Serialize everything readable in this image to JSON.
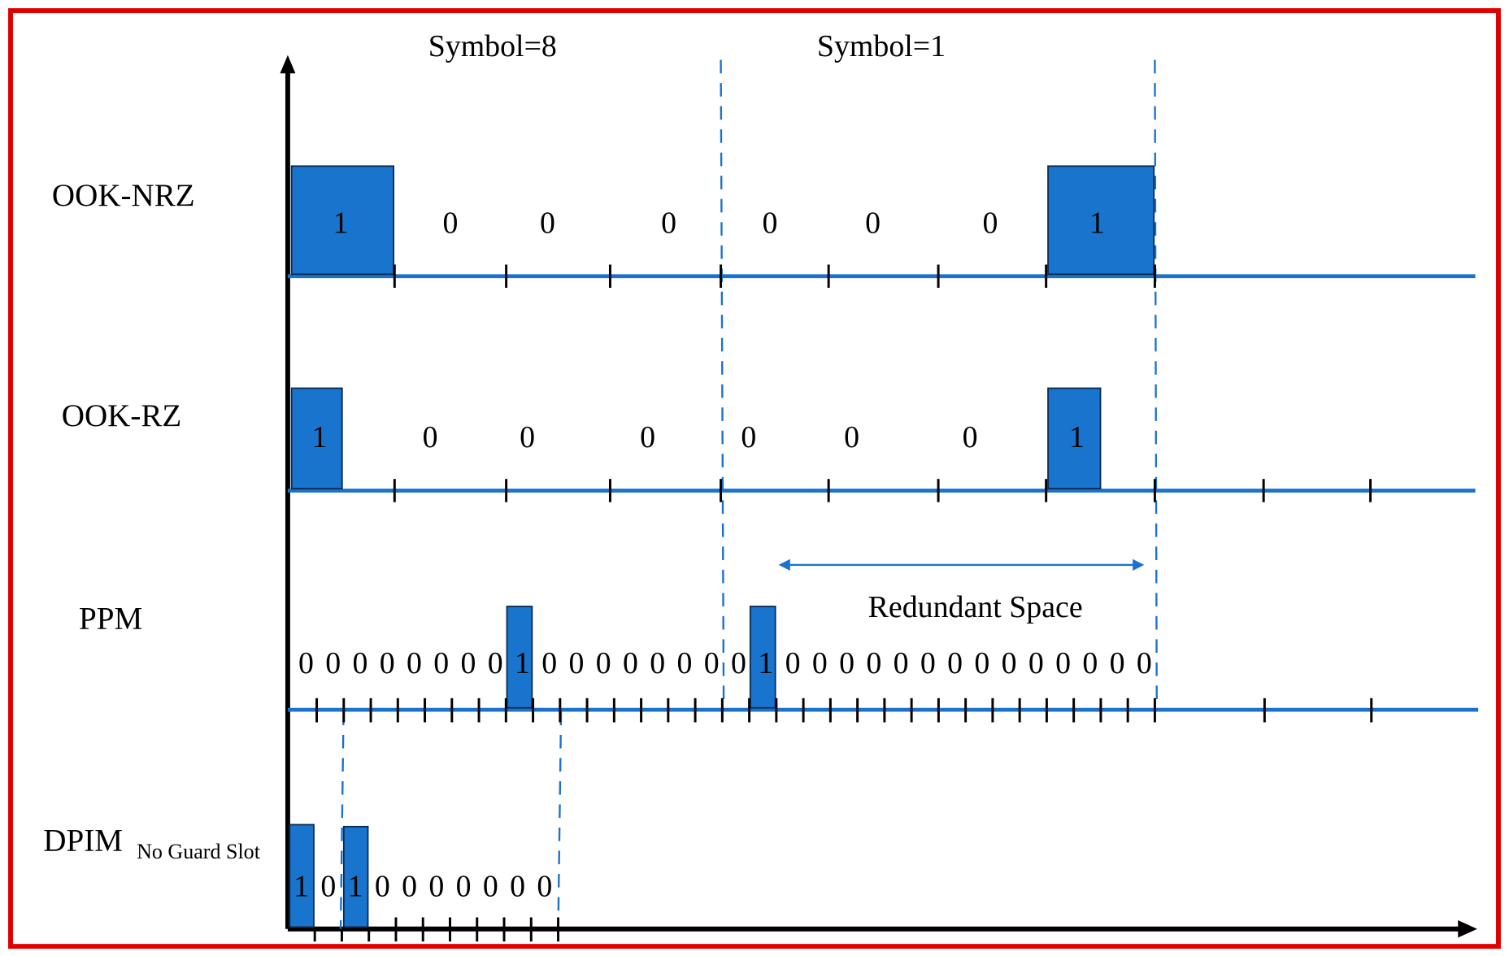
{
  "colors": {
    "border": "#e00000",
    "signal": "#1a72cc",
    "pulse_fill": "#1874cd",
    "axis": "#000000"
  },
  "headers": {
    "symbol_a": "Symbol=8",
    "symbol_b": "Symbol=1"
  },
  "rows": {
    "ook_nrz": {
      "label": "OOK-NRZ",
      "bits": [
        "1",
        "0",
        "0",
        "0",
        "0",
        "0",
        "0",
        "1"
      ]
    },
    "ook_rz": {
      "label": "OOK-RZ",
      "bits": [
        "1",
        "0",
        "0",
        "0",
        "0",
        "0",
        "0",
        "1"
      ]
    },
    "ppm": {
      "label": "PPM",
      "slots_symbol_a": [
        "0",
        "0",
        "0",
        "0",
        "0",
        "0",
        "0",
        "0",
        "1",
        "0",
        "0",
        "0",
        "0",
        "0",
        "0",
        "0"
      ],
      "slots_symbol_b": [
        "0",
        "1",
        "0",
        "0",
        "0",
        "0",
        "0",
        "0",
        "0",
        "0",
        "0",
        "0",
        "0",
        "0",
        "0",
        "0"
      ]
    },
    "dpim": {
      "label": "DPIM",
      "subscript": "No Guard Slot",
      "slots": [
        "1",
        "0",
        "1",
        "0",
        "0",
        "0",
        "0",
        "0",
        "0",
        "0"
      ]
    }
  },
  "annotation": {
    "redundant_space": "Redundant Space"
  }
}
